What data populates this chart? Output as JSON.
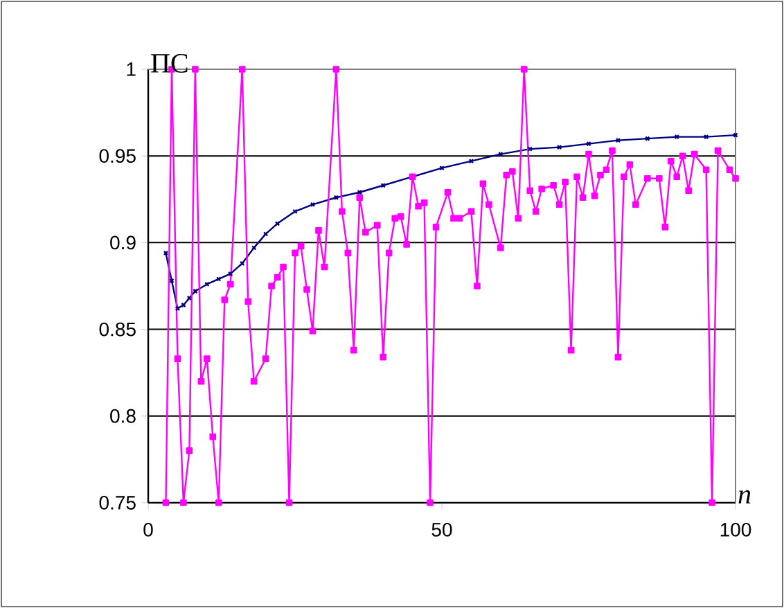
{
  "chart_data": {
    "type": "line",
    "xlabel": "n",
    "ylabel": "ПС",
    "xlim": [
      0,
      100
    ],
    "ylim": [
      0.75,
      1
    ],
    "xticks": [
      0,
      50,
      100
    ],
    "yticks": [
      0.75,
      0.8,
      0.85,
      0.9,
      0.95,
      1
    ],
    "grid": "y",
    "series": [
      {
        "color": "#000080",
        "marker": "cross",
        "x": [
          3,
          4,
          5,
          6,
          7,
          8,
          10,
          12,
          14,
          16,
          18,
          20,
          22,
          25,
          28,
          32,
          36,
          40,
          45,
          50,
          55,
          60,
          65,
          70,
          75,
          80,
          85,
          90,
          95,
          100
        ],
        "values": [
          0.894,
          0.878,
          0.862,
          0.864,
          0.868,
          0.872,
          0.876,
          0.879,
          0.882,
          0.888,
          0.897,
          0.905,
          0.911,
          0.918,
          0.922,
          0.926,
          0.929,
          0.933,
          0.938,
          0.943,
          0.947,
          0.951,
          0.954,
          0.955,
          0.957,
          0.959,
          0.96,
          0.961,
          0.961,
          0.962
        ]
      },
      {
        "color": "#ff00ff",
        "marker": "square",
        "x": [
          3,
          4,
          5,
          6,
          7,
          8,
          9,
          10,
          11,
          12,
          13,
          14,
          16,
          17,
          18,
          20,
          21,
          22,
          23,
          24,
          25,
          26,
          27,
          28,
          29,
          30,
          32,
          33,
          34,
          35,
          36,
          37,
          39,
          40,
          41,
          42,
          43,
          44,
          45,
          46,
          47,
          48,
          49,
          51,
          52,
          53,
          55,
          56,
          57,
          58,
          60,
          61,
          62,
          63,
          64,
          65,
          66,
          67,
          69,
          70,
          71,
          72,
          73,
          74,
          75,
          76,
          77,
          78,
          79,
          80,
          81,
          82,
          83,
          85,
          87,
          88,
          89,
          90,
          91,
          92,
          93,
          95,
          96,
          97,
          99,
          100
        ],
        "values": [
          0.75,
          1,
          0.833,
          0.75,
          0.78,
          1,
          0.82,
          0.833,
          0.788,
          0.75,
          0.867,
          0.876,
          1,
          0.866,
          0.82,
          0.833,
          0.875,
          0.88,
          0.886,
          0.75,
          0.894,
          0.898,
          0.873,
          0.849,
          0.907,
          0.886,
          1,
          0.918,
          0.894,
          0.838,
          0.926,
          0.906,
          0.91,
          0.834,
          0.894,
          0.914,
          0.915,
          0.899,
          0.938,
          0.921,
          0.923,
          0.75,
          0.909,
          0.929,
          0.914,
          0.914,
          0.918,
          0.875,
          0.934,
          0.922,
          0.897,
          0.939,
          0.941,
          0.914,
          1,
          0.93,
          0.918,
          0.931,
          0.933,
          0.922,
          0.935,
          0.838,
          0.938,
          0.926,
          0.951,
          0.927,
          0.939,
          0.942,
          0.953,
          0.834,
          0.938,
          0.945,
          0.922,
          0.937,
          0.937,
          0.909,
          0.947,
          0.938,
          0.95,
          0.93,
          0.951,
          0.942,
          0.75,
          0.953,
          0.942,
          0.937
        ]
      }
    ]
  }
}
